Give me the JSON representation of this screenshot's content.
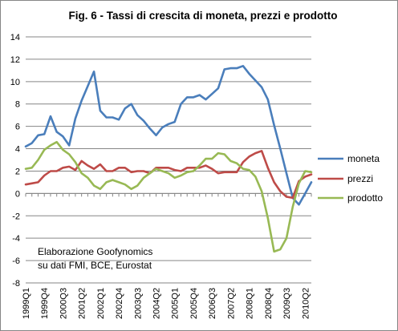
{
  "chart_data": {
    "type": "line",
    "title": "Fig. 6 - Tassi di crescita di moneta, prezzi e prodotto",
    "xlabel": "",
    "ylabel": "",
    "ylim": [
      -8,
      14
    ],
    "yticks": [
      -8,
      -6,
      -4,
      -2,
      0,
      2,
      4,
      6,
      8,
      10,
      12,
      14
    ],
    "grid": "horizontal",
    "legend": "right",
    "x": [
      "1999Q1",
      "1999Q2",
      "1999Q3",
      "1999Q4",
      "2000Q1",
      "2000Q2",
      "2000Q3",
      "2000Q4",
      "2001Q1",
      "2001Q2",
      "2001Q3",
      "2001Q4",
      "2002Q1",
      "2002Q2",
      "2002Q3",
      "2002Q4",
      "2003Q1",
      "2003Q2",
      "2003Q3",
      "2003Q4",
      "2004Q1",
      "2004Q2",
      "2004Q3",
      "2004Q4",
      "2005Q1",
      "2005Q2",
      "2005Q3",
      "2005Q4",
      "2006Q1",
      "2006Q2",
      "2006Q3",
      "2006Q4",
      "2007Q1",
      "2007Q2",
      "2007Q3",
      "2007Q4",
      "2008Q1",
      "2008Q2",
      "2008Q3",
      "2008Q4",
      "2009Q1",
      "2009Q2",
      "2009Q3",
      "2009Q4",
      "2010Q1",
      "2010Q2",
      "2010Q3"
    ],
    "xtick_labels": [
      "1999Q1",
      "1999Q4",
      "2000Q3",
      "2001Q2",
      "2002Q1",
      "2002Q4",
      "2003Q3",
      "2004Q2",
      "2005Q1",
      "2005Q4",
      "2006Q3",
      "2007Q2",
      "2008Q1",
      "2008Q4",
      "2009Q3",
      "2010Q2"
    ],
    "series": [
      {
        "name": "moneta",
        "color": "#4a7ebb",
        "values": [
          4.2,
          4.5,
          5.2,
          5.3,
          6.9,
          5.5,
          5.1,
          4.3,
          6.7,
          8.3,
          9.6,
          10.9,
          7.4,
          6.8,
          6.8,
          6.6,
          7.6,
          8.0,
          7.0,
          6.5,
          5.8,
          5.2,
          5.9,
          6.2,
          6.4,
          8.0,
          8.6,
          8.6,
          8.8,
          8.4,
          8.9,
          9.4,
          11.1,
          11.2,
          11.2,
          11.4,
          10.7,
          10.1,
          9.5,
          8.4,
          6.1,
          4.0,
          1.8,
          -0.4,
          -1.0,
          0.0,
          1.0
        ]
      },
      {
        "name": "prezzi",
        "color": "#be4b48",
        "values": [
          0.8,
          0.9,
          1.0,
          1.6,
          2.0,
          2.0,
          2.3,
          2.4,
          2.1,
          2.9,
          2.5,
          2.2,
          2.6,
          2.0,
          2.0,
          2.3,
          2.3,
          1.9,
          2.0,
          2.0,
          1.8,
          2.3,
          2.3,
          2.3,
          2.1,
          2.0,
          2.3,
          2.3,
          2.3,
          2.5,
          2.2,
          1.8,
          1.9,
          1.9,
          1.9,
          2.8,
          3.3,
          3.6,
          3.8,
          2.3,
          1.0,
          0.2,
          -0.3,
          -0.4,
          1.1,
          1.5,
          1.7
        ]
      },
      {
        "name": "prodotto",
        "color": "#98b954",
        "values": [
          2.2,
          2.3,
          3.0,
          3.9,
          4.3,
          4.6,
          3.9,
          3.5,
          2.8,
          1.8,
          1.4,
          0.7,
          0.4,
          1.0,
          1.2,
          1.0,
          0.8,
          0.4,
          0.7,
          1.4,
          1.8,
          2.2,
          2.0,
          1.8,
          1.4,
          1.6,
          1.9,
          2.0,
          2.5,
          3.1,
          3.1,
          3.6,
          3.5,
          2.9,
          2.7,
          2.2,
          2.1,
          1.5,
          0.2,
          -2.2,
          -5.2,
          -5.0,
          -4.0,
          -1.2,
          0.9,
          2.0,
          1.9
        ]
      }
    ],
    "annotation": [
      "Elaborazione Goofynomics",
      "su dati FMI, BCE, Eurostat"
    ]
  }
}
